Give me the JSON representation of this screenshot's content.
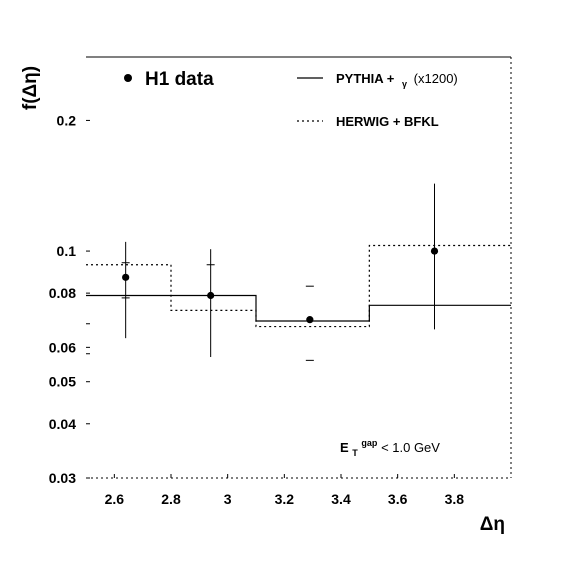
{
  "chart_data": {
    "type": "scatter",
    "title": "",
    "xlabel": "Δη",
    "ylabel": "f(Δη)",
    "xlim": [
      2.5,
      4.0
    ],
    "ylim": [
      0.03,
      0.28
    ],
    "yscale": "log",
    "grid": false,
    "legend_position": "top",
    "x_ticks": [
      2.6,
      2.8,
      3.0,
      3.2,
      3.4,
      3.6,
      3.8
    ],
    "x_tick_labels": [
      "2.6",
      "2.8",
      "3",
      "3.2",
      "3.4",
      "3.6",
      "3.8"
    ],
    "y_ticks": [
      0.03,
      0.04,
      0.05,
      0.06,
      0.08,
      0.1,
      0.2
    ],
    "y_tick_labels": [
      "0.03",
      "0.04",
      "0.05",
      "0.06",
      "0.08",
      "0.1",
      "0.2"
    ],
    "legend": {
      "data_label": "H1 data",
      "pythia_label": "PYTHIA + γ (x1200)",
      "pythia_main": "PYTHIA +",
      "pythia_gamma": "γ",
      "pythia_factor": "(x1200)",
      "herwig_label": "HERWIG + BFKL"
    },
    "annotation": {
      "main": "E",
      "sub": "T",
      "sup": "gap",
      "rest": " < 1.0 GeV"
    },
    "series": [
      {
        "name": "H1 data",
        "points": [
          {
            "x": 2.64,
            "y": 0.087,
            "err_lo": 0.024,
            "err_hi": 0.018
          },
          {
            "x": 2.94,
            "y": 0.079,
            "err_lo": 0.022,
            "err_hi": 0.022
          },
          {
            "x": 3.29,
            "y": 0.0695,
            "err_lo": 0.0,
            "err_hi": 0.0
          },
          {
            "x": 3.73,
            "y": 0.1,
            "err_lo": 0.034,
            "err_hi": 0.043
          }
        ],
        "syst_ticks": [
          {
            "x": 2.64,
            "y": [
              0.078,
              0.094
            ]
          },
          {
            "x": 2.94,
            "y": [
              0.093
            ]
          },
          {
            "x": 3.29,
            "y": [
              0.083,
              0.056
            ]
          }
        ]
      },
      {
        "name": "PYTHIA + γ (x1200)",
        "style": "solid",
        "bins": [
          {
            "x0": 2.5,
            "x1": 2.8,
            "y": 0.079
          },
          {
            "x0": 2.8,
            "x1": 3.1,
            "y": 0.079
          },
          {
            "x0": 3.1,
            "x1": 3.5,
            "y": 0.069
          },
          {
            "x0": 3.5,
            "x1": 4.0,
            "y": 0.075
          }
        ]
      },
      {
        "name": "HERWIG + BFKL",
        "style": "dotted",
        "bins": [
          {
            "x0": 2.5,
            "x1": 2.8,
            "y": 0.093
          },
          {
            "x0": 2.8,
            "x1": 3.1,
            "y": 0.073
          },
          {
            "x0": 3.1,
            "x1": 3.5,
            "y": 0.067
          },
          {
            "x0": 3.5,
            "x1": 4.0,
            "y": 0.103
          }
        ]
      }
    ],
    "stray_ticks": [
      {
        "x": 2.5,
        "y": 0.068
      },
      {
        "x": 2.5,
        "y": 0.058
      }
    ]
  }
}
